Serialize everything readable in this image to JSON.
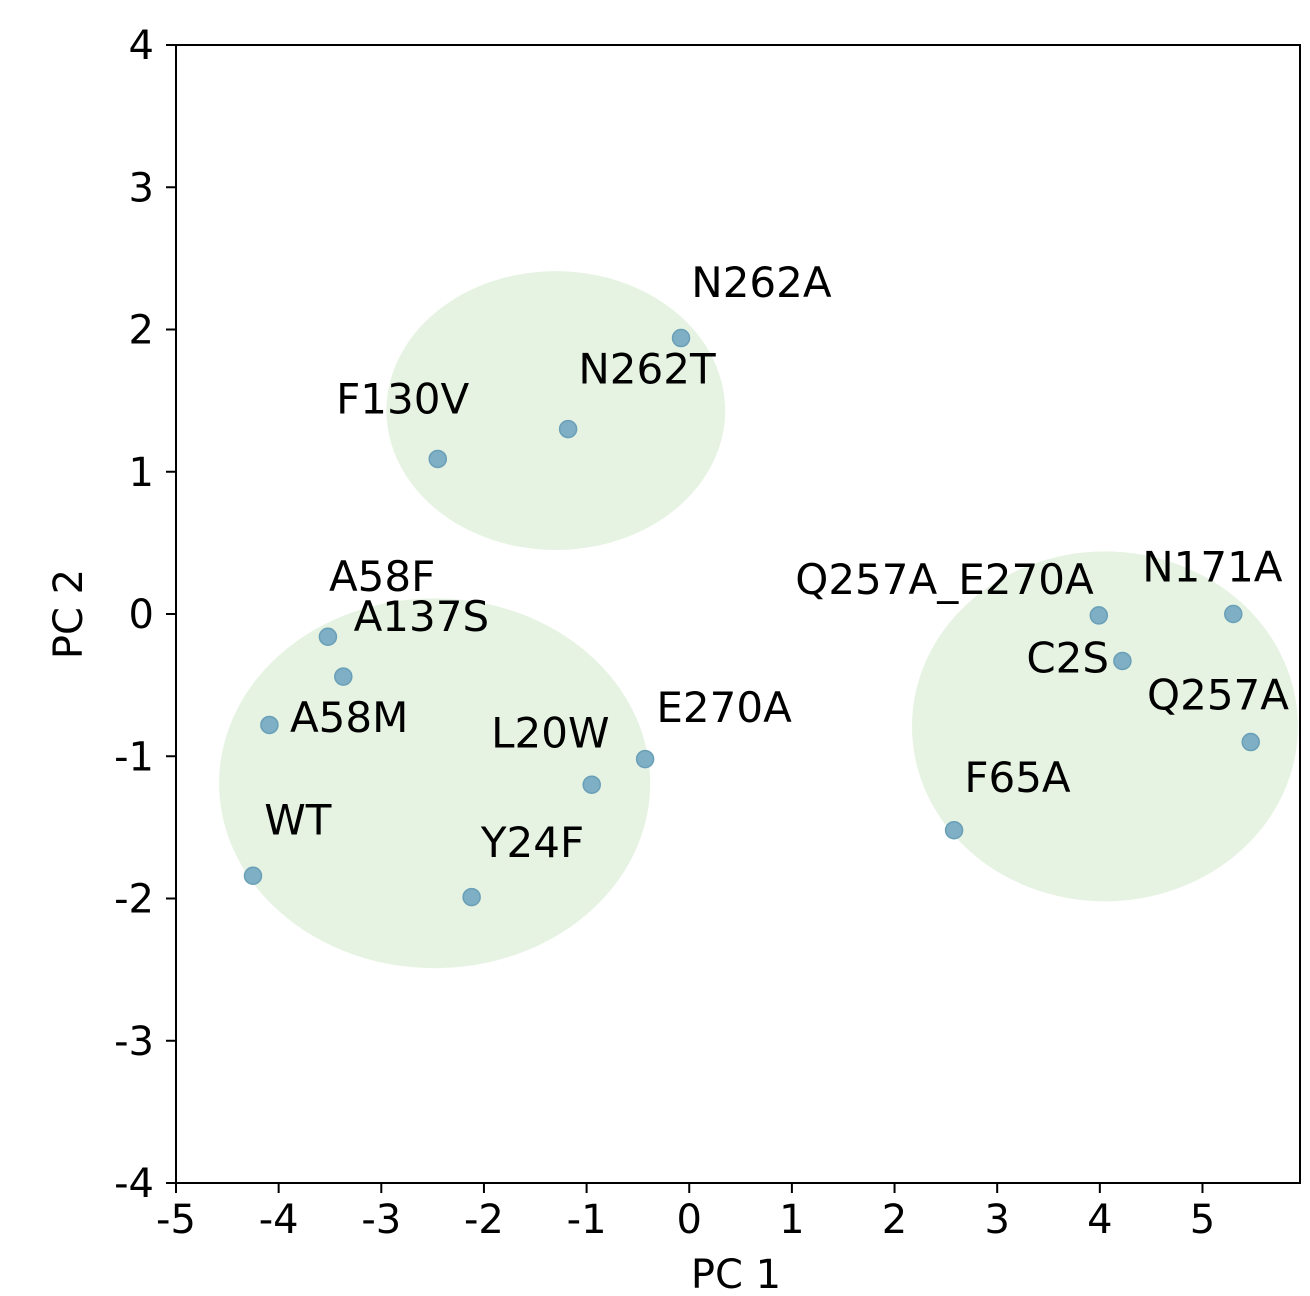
{
  "chart_data": {
    "type": "scatter",
    "title": "",
    "xlabel": "PC 1",
    "ylabel": "PC 2",
    "xlim": [
      -5,
      5.95
    ],
    "ylim": [
      -4,
      4
    ],
    "xticks": [
      -5,
      -4,
      -3,
      -2,
      -1,
      0,
      1,
      2,
      3,
      4,
      5
    ],
    "yticks": [
      -4,
      -3,
      -2,
      -1,
      0,
      1,
      2,
      3,
      4
    ],
    "grid": false,
    "legend": "none",
    "colors": {
      "point": "#7eafc4",
      "point_edge": "#6a9fb8",
      "cluster_fill": "#d8ecd2"
    },
    "clusters": [
      {
        "center": [
          -1.3,
          1.43
        ],
        "radius_x": 1.65,
        "radius_y": 0.98
      },
      {
        "center": [
          -2.48,
          -1.19
        ],
        "radius_x": 2.1,
        "radius_y": 1.3
      },
      {
        "center": [
          4.05,
          -0.79
        ],
        "radius_x": 1.88,
        "radius_y": 1.23
      }
    ],
    "points": [
      {
        "label": "N262A",
        "x": -0.08,
        "y": 1.94,
        "label_anchor": "start",
        "label_dx": 0.1,
        "label_dy": 0.29
      },
      {
        "label": "N262T",
        "x": -1.18,
        "y": 1.3,
        "label_anchor": "start",
        "label_dx": 0.1,
        "label_dy": 0.32
      },
      {
        "label": "F130V",
        "x": -2.45,
        "y": 1.09,
        "label_anchor": "start",
        "label_dx": -0.99,
        "label_dy": 0.32
      },
      {
        "label": "A58F",
        "x": -3.52,
        "y": -0.16,
        "label_anchor": "start",
        "label_dx": 0.01,
        "label_dy": 0.32
      },
      {
        "label": "A137S",
        "x": -3.37,
        "y": -0.44,
        "label_anchor": "start",
        "label_dx": 0.1,
        "label_dy": 0.32
      },
      {
        "label": "A58M",
        "x": -4.09,
        "y": -0.78,
        "label_anchor": "start",
        "label_dx": 0.2,
        "label_dy": -0.05
      },
      {
        "label": "WT",
        "x": -4.25,
        "y": -1.84,
        "label_anchor": "start",
        "label_dx": 0.11,
        "label_dy": 0.29
      },
      {
        "label": "Y24F",
        "x": -2.12,
        "y": -1.99,
        "label_anchor": "start",
        "label_dx": 0.09,
        "label_dy": 0.28
      },
      {
        "label": "L20W",
        "x": -0.95,
        "y": -1.2,
        "label_anchor": "start",
        "label_dx": -0.98,
        "label_dy": 0.26
      },
      {
        "label": "E270A",
        "x": -0.43,
        "y": -1.02,
        "label_anchor": "start",
        "label_dx": 0.11,
        "label_dy": 0.26
      },
      {
        "label": "Q257A_E270A",
        "x": 3.99,
        "y": -0.01,
        "label_anchor": "end",
        "label_dx": -0.05,
        "label_dy": 0.15
      },
      {
        "label": "N171A",
        "x": 5.3,
        "y": 0.0,
        "label_anchor": "end",
        "label_dx": 0.48,
        "label_dy": 0.23
      },
      {
        "label": "C2S",
        "x": 4.22,
        "y": -0.33,
        "label_anchor": "end",
        "label_dx": -0.13,
        "label_dy": -0.08
      },
      {
        "label": "Q257A",
        "x": 5.47,
        "y": -0.9,
        "label_anchor": "start",
        "label_dx": -1.01,
        "label_dy": 0.23
      },
      {
        "label": "F65A",
        "x": 2.58,
        "y": -1.52,
        "label_anchor": "start",
        "label_dx": 0.1,
        "label_dy": 0.27
      }
    ]
  }
}
